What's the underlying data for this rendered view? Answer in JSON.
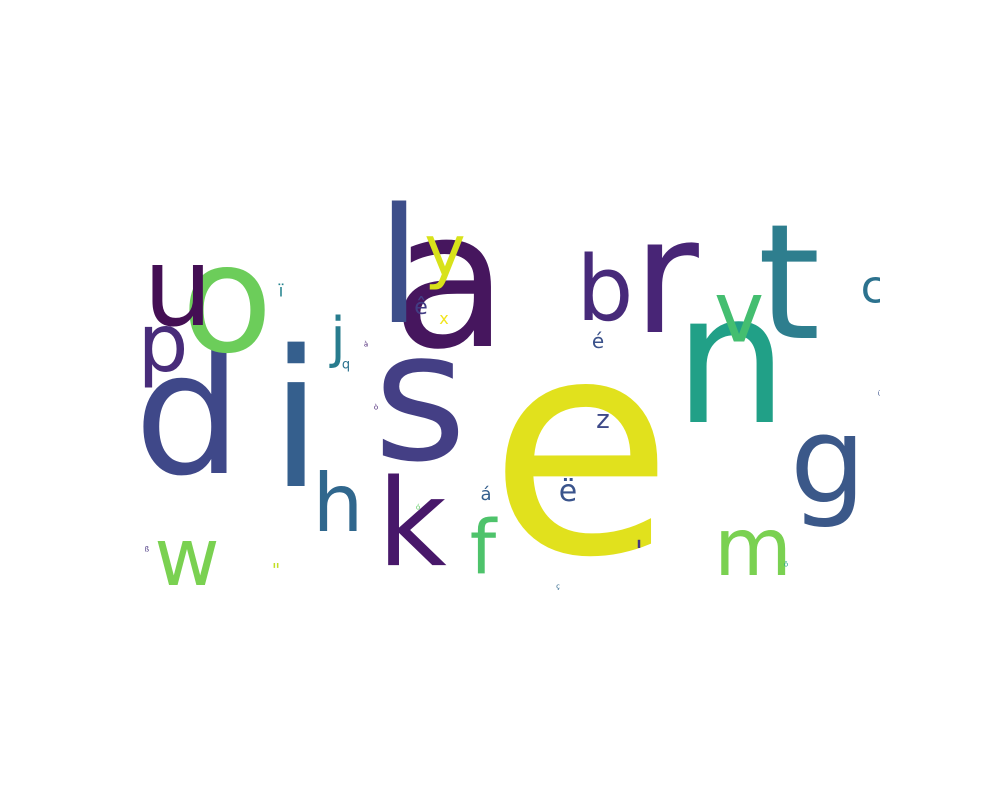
{
  "palette": "viridis",
  "words": [
    {
      "text": "e",
      "color": "#e1e11d",
      "weight": 1.0
    },
    {
      "text": "a",
      "color": "#46165e",
      "weight": 0.86
    },
    {
      "text": "s",
      "color": "#443f85",
      "weight": 0.8
    },
    {
      "text": "n",
      "color": "#21a087",
      "weight": 0.76
    },
    {
      "text": "i",
      "color": "#355f8d",
      "weight": 0.72
    },
    {
      "text": "d",
      "color": "#3f4889",
      "weight": 0.71
    },
    {
      "text": "r",
      "color": "#482576",
      "weight": 0.63
    },
    {
      "text": "o",
      "color": "#6ccd5a",
      "weight": 0.63
    },
    {
      "text": "t",
      "color": "#2e7e8e",
      "weight": 0.62
    },
    {
      "text": "l",
      "color": "#3d4e8a",
      "weight": 0.62
    },
    {
      "text": "g",
      "color": "#3b5889",
      "weight": 0.55
    },
    {
      "text": "u",
      "color": "#440f54",
      "weight": 0.53
    },
    {
      "text": "k",
      "color": "#48186a",
      "weight": 0.5
    },
    {
      "text": "b",
      "color": "#472a7a",
      "weight": 0.44
    },
    {
      "text": "v",
      "color": "#44be70",
      "weight": 0.42
    },
    {
      "text": "p",
      "color": "#482c7a",
      "weight": 0.41
    },
    {
      "text": "y",
      "color": "#d8e21a",
      "weight": 0.38
    },
    {
      "text": "h",
      "color": "#30678d",
      "weight": 0.38
    },
    {
      "text": "m",
      "color": "#7ad151",
      "weight": 0.36
    },
    {
      "text": "w",
      "color": "#7ad151",
      "weight": 0.36
    },
    {
      "text": "f",
      "color": "#4ec36b",
      "weight": 0.32
    },
    {
      "text": "j",
      "color": "#287c8e",
      "weight": 0.25
    },
    {
      "text": "c",
      "color": "#2c728e",
      "weight": 0.21
    },
    {
      "text": "ë",
      "color": "#3a548c",
      "weight": 0.13
    },
    {
      "text": "'",
      "color": "#453781",
      "weight": 0.12
    },
    {
      "text": "z",
      "color": "#3e4a89",
      "weight": 0.1
    },
    {
      "text": "ê",
      "color": "#433d84",
      "weight": 0.08
    },
    {
      "text": "é",
      "color": "#3b528b",
      "weight": 0.07
    },
    {
      "text": "á",
      "color": "#355f8d",
      "weight": 0.07
    },
    {
      "text": "\"",
      "color": "#c2df23",
      "weight": 0.07
    },
    {
      "text": "ï",
      "color": "#25838e",
      "weight": 0.06
    },
    {
      "text": "x",
      "color": "#f1e51d",
      "weight": 0.06
    },
    {
      "text": "q",
      "color": "#2c728e",
      "weight": 0.05
    },
    {
      "text": "à",
      "color": "#482173",
      "weight": 0.02
    },
    {
      "text": "ò",
      "color": "#482475",
      "weight": 0.02
    },
    {
      "text": "ó",
      "color": "#5ec962",
      "weight": 0.02
    },
    {
      "text": "ü",
      "color": "#3b528b",
      "weight": 0.02
    },
    {
      "text": "ö",
      "color": "#20a386",
      "weight": 0.02
    },
    {
      "text": "ß",
      "color": "#46337f",
      "weight": 0.02
    },
    {
      "text": "ç",
      "color": "#31688e",
      "weight": 0.02
    }
  ]
}
